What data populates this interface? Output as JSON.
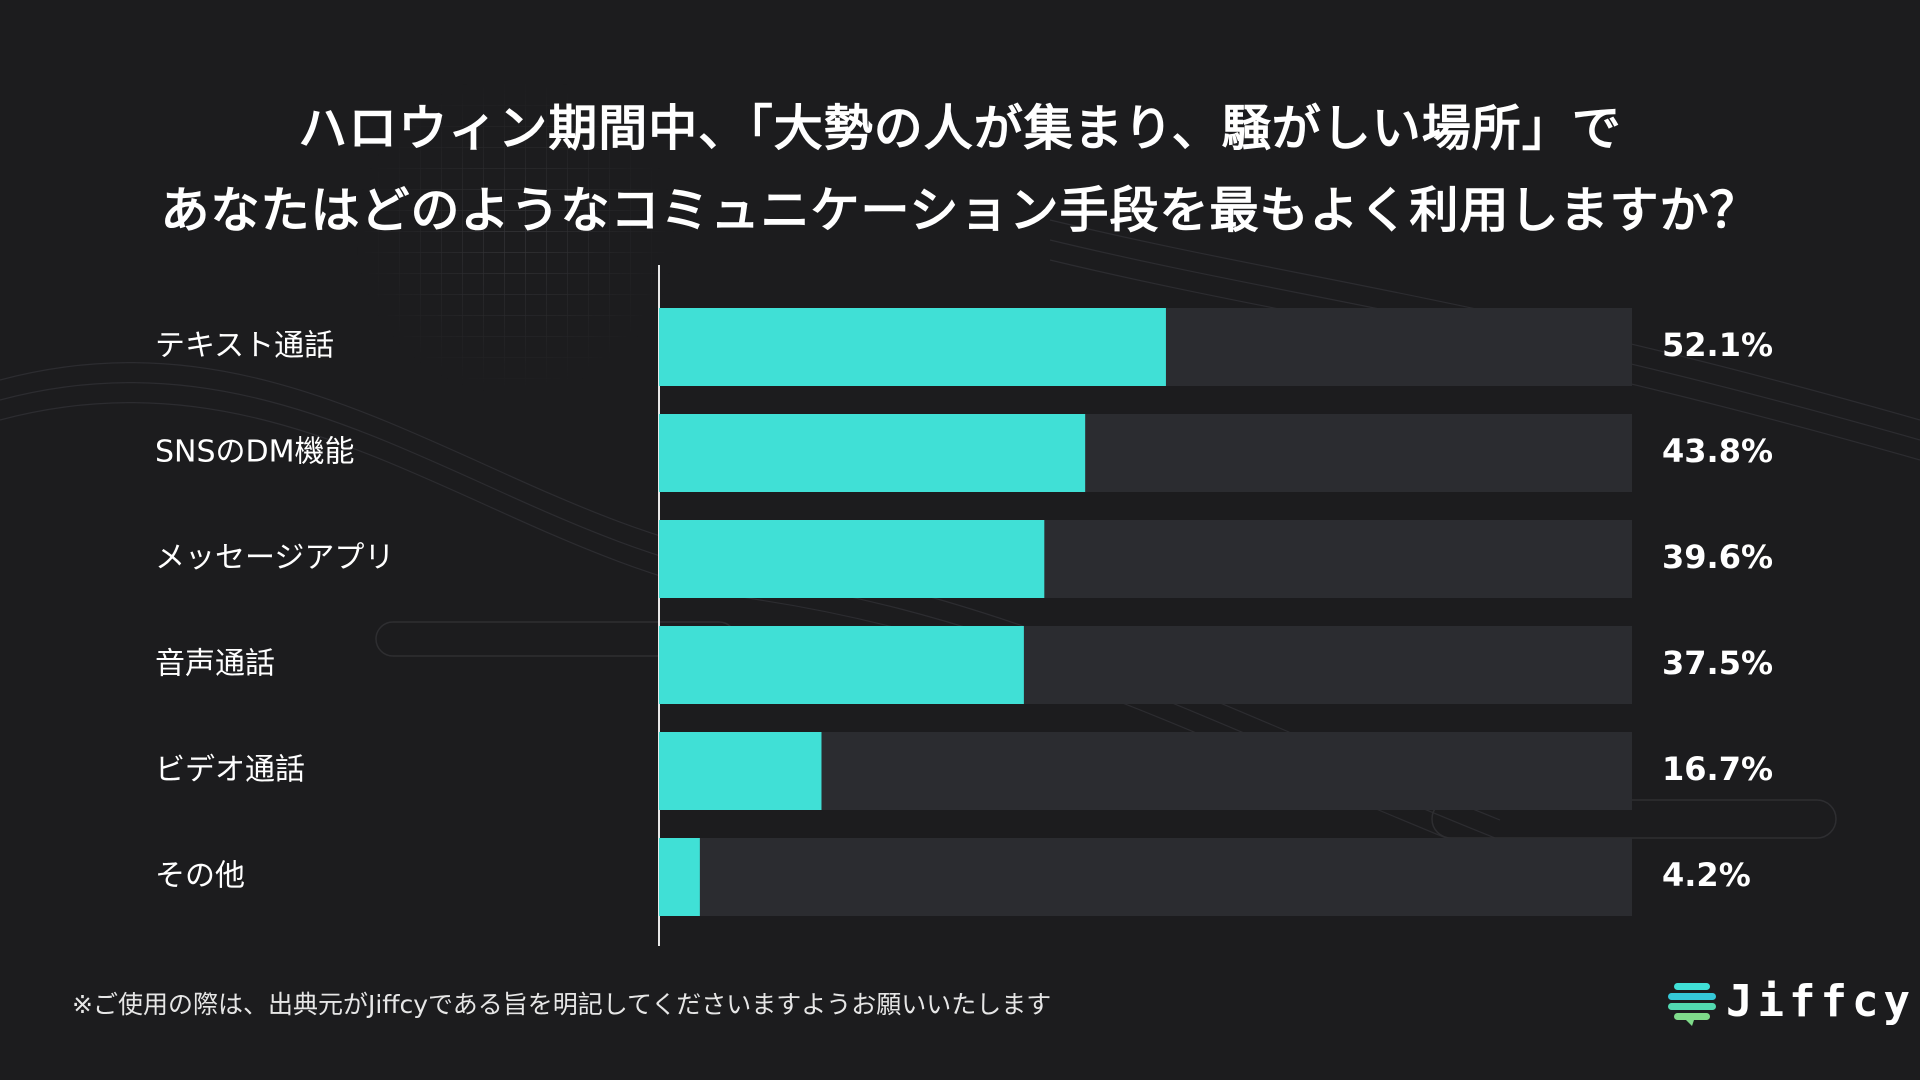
{
  "title": {
    "line1": "ハロウィン期間中、「大勢の人が集まり、騒がしい場所」で",
    "line2": "あなたはどのようなコミュニケーション手段を最もよく利用しますか？"
  },
  "chart_data": {
    "type": "bar",
    "orientation": "horizontal",
    "categories": [
      "テキスト通話",
      "SNSのDM機能",
      "メッセージアプリ",
      "音声通話",
      "ビデオ通話",
      "その他"
    ],
    "values": [
      52.1,
      43.8,
      39.6,
      37.5,
      16.7,
      4.2
    ],
    "value_labels": [
      "52.1%",
      "43.8%",
      "39.6%",
      "37.5%",
      "16.7%",
      "4.2%"
    ],
    "xlim": [
      0,
      100
    ],
    "bar_color": "#40e0d6",
    "track_color": "#2b2c30"
  },
  "footnote": "※ご使用の際は、出典元がJiffcyである旨を明記してくださいますようお願いいたします",
  "logo": {
    "text": "Jiffcy",
    "icon": "jiffcy-logo-icon"
  }
}
